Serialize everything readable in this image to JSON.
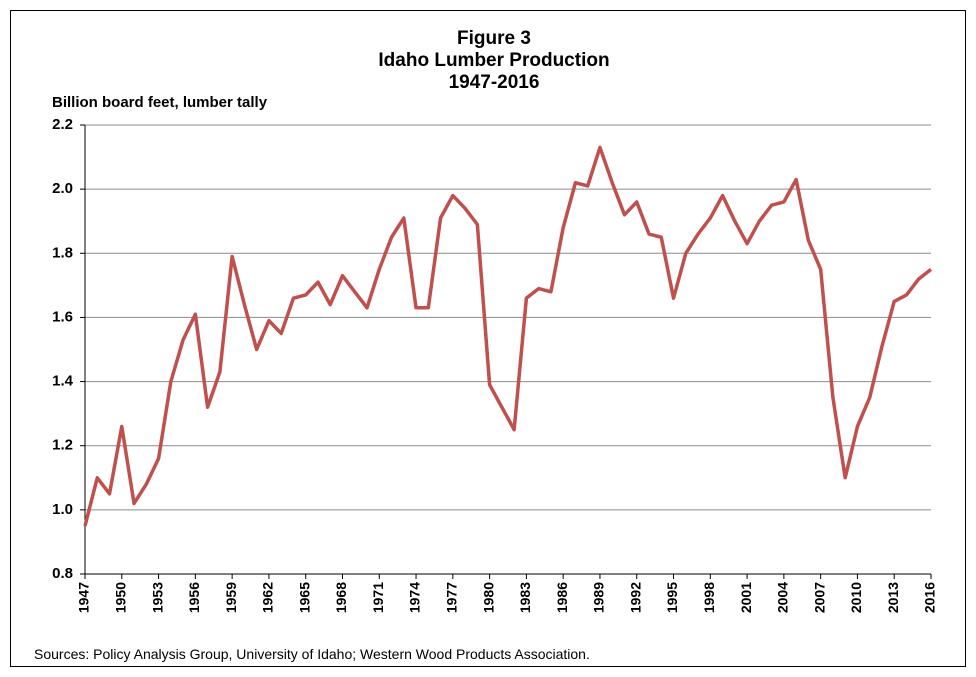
{
  "chart_data": {
    "type": "line",
    "title": "Figure 3",
    "subtitle": "Idaho Lumber Production",
    "period": "1947-2016",
    "y_axis_label": "Billion board feet, lumber tally",
    "source": "Sources: Policy Analysis Group, University of Idaho; Western Wood Products Association.",
    "x": [
      1947,
      1948,
      1949,
      1950,
      1951,
      1952,
      1953,
      1954,
      1955,
      1956,
      1957,
      1958,
      1959,
      1960,
      1961,
      1962,
      1963,
      1964,
      1965,
      1966,
      1967,
      1968,
      1969,
      1970,
      1971,
      1972,
      1973,
      1974,
      1975,
      1976,
      1977,
      1978,
      1979,
      1980,
      1981,
      1982,
      1983,
      1984,
      1985,
      1986,
      1987,
      1988,
      1989,
      1990,
      1991,
      1992,
      1993,
      1994,
      1995,
      1996,
      1997,
      1998,
      1999,
      2000,
      2001,
      2002,
      2003,
      2004,
      2005,
      2006,
      2007,
      2008,
      2009,
      2010,
      2011,
      2012,
      2013,
      2014,
      2015,
      2016
    ],
    "series": [
      {
        "color": "#c0504d",
        "values": [
          0.95,
          1.1,
          1.05,
          1.26,
          1.02,
          1.08,
          1.16,
          1.4,
          1.53,
          1.61,
          1.32,
          1.43,
          1.79,
          1.64,
          1.5,
          1.59,
          1.55,
          1.66,
          1.67,
          1.71,
          1.64,
          1.73,
          1.68,
          1.63,
          1.75,
          1.85,
          1.91,
          1.63,
          1.63,
          1.91,
          1.98,
          1.94,
          1.89,
          1.39,
          1.32,
          1.25,
          1.66,
          1.69,
          1.68,
          1.88,
          2.02,
          2.01,
          2.13,
          2.02,
          1.92,
          1.96,
          1.86,
          1.85,
          1.66,
          1.8,
          1.86,
          1.91,
          1.98,
          1.9,
          1.83,
          1.9,
          1.95,
          1.96,
          2.03,
          1.84,
          1.75,
          1.35,
          1.1,
          1.26,
          1.35,
          1.51,
          1.65,
          1.67,
          1.72,
          1.75
        ]
      }
    ],
    "xlim": [
      1947,
      2016
    ],
    "xticks": [
      1947,
      1950,
      1953,
      1956,
      1959,
      1962,
      1965,
      1968,
      1971,
      1974,
      1977,
      1980,
      1983,
      1986,
      1989,
      1992,
      1995,
      1998,
      2001,
      2004,
      2007,
      2010,
      2013,
      2016
    ],
    "ylim": [
      0.8,
      2.2
    ],
    "yticks": [
      0.8,
      {
        "value": 1,
        "label": "1.0"
      },
      1.2,
      1.4,
      1.6,
      1.8,
      {
        "value": 2,
        "label": "2.0"
      },
      2.2
    ],
    "grid": true
  }
}
